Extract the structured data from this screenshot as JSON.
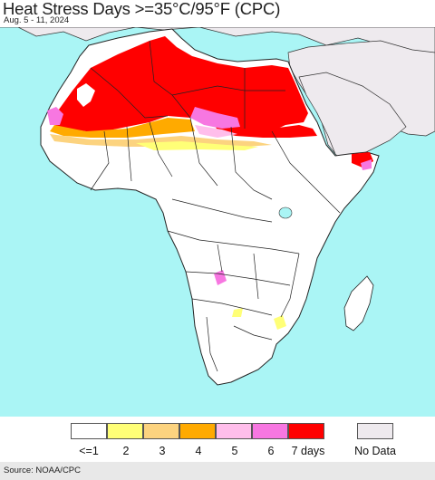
{
  "header": {
    "title": "Heat Stress Days >=35°C/95°F (CPC)",
    "subtitle": "Aug. 5 - 11, 2024"
  },
  "map": {
    "region": "Africa",
    "ocean_color": "#aaf5f5",
    "land_color": "#ffffff",
    "no_data_land_color": "#eeeaee",
    "border_color": "#333333"
  },
  "legend": {
    "items": [
      {
        "label": "<=1",
        "color": "#ffffff"
      },
      {
        "label": "2",
        "color": "#ffff77"
      },
      {
        "label": "3",
        "color": "#fcd37f"
      },
      {
        "label": "4",
        "color": "#ffaa00"
      },
      {
        "label": "5",
        "color": "#ffbeeb"
      },
      {
        "label": "6",
        "color": "#f777e1"
      },
      {
        "label": "7 days",
        "color": "#ff0000"
      }
    ],
    "no_data": {
      "label": "No Data",
      "color": "#eeeaee"
    }
  },
  "footer": {
    "source": "Source: NOAA/CPC"
  }
}
